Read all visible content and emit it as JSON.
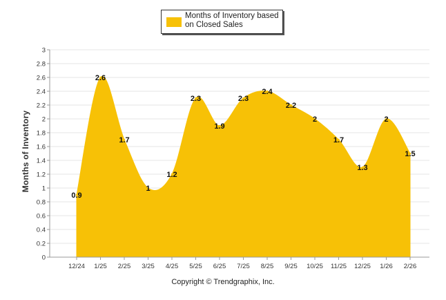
{
  "chart_data": {
    "type": "area",
    "title": "",
    "ylabel": "Months of Inventory",
    "xlabel": "",
    "ylim": [
      0,
      3
    ],
    "y_ticks": [
      "0",
      "0.2",
      "0.4",
      "0.6",
      "0.8",
      "1",
      "1.2",
      "1.4",
      "1.6",
      "1.8",
      "2",
      "2.2",
      "2.4",
      "2.6",
      "2.8",
      "3"
    ],
    "categories": [
      "12/24",
      "1/25",
      "2/25",
      "3/25",
      "4/25",
      "5/25",
      "6/25",
      "7/25",
      "8/25",
      "9/25",
      "10/25",
      "11/25",
      "12/25",
      "1/26",
      "2/26"
    ],
    "series": [
      {
        "name": "Months of Inventory based on Closed Sales",
        "values": [
          0.9,
          2.6,
          1.7,
          1,
          1.2,
          2.3,
          1.9,
          2.3,
          2.4,
          2.2,
          2,
          1.7,
          1.3,
          2,
          1.5
        ],
        "labels": [
          "0.9",
          "2.6",
          "1.7",
          "1",
          "1.2",
          "2.3",
          "1.9",
          "2.3",
          "2.4",
          "2.2",
          "2",
          "1.7",
          "1.3",
          "2",
          "1.5"
        ],
        "color": "#F7C106"
      }
    ],
    "grid": true,
    "legend_position": "top-center"
  },
  "legend": {
    "label": "Months of Inventory based on Closed Sales"
  },
  "footer": {
    "copyright": "Copyright © Trendgraphix, Inc."
  }
}
